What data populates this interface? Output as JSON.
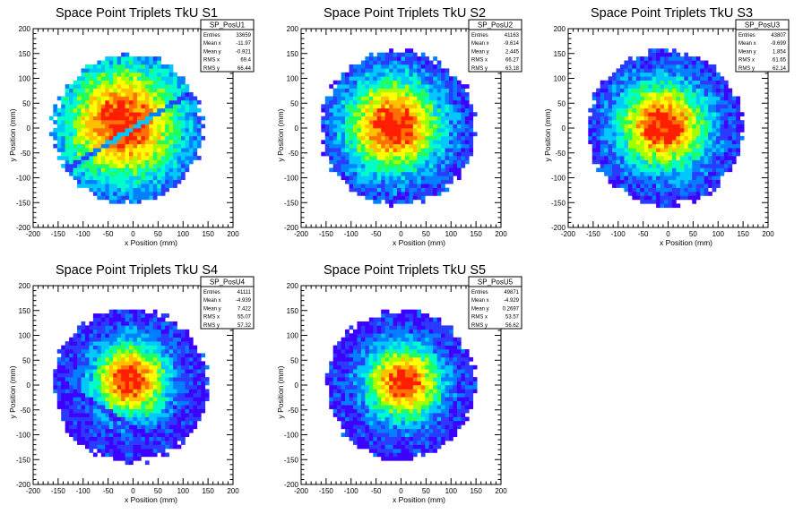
{
  "colors": {
    "palette": [
      "#3d00ff",
      "#2a3bff",
      "#0080ff",
      "#00c8ff",
      "#00ffc8",
      "#20ff60",
      "#a6ff00",
      "#ffff00",
      "#ffc000",
      "#ff7000",
      "#ff1e00"
    ]
  },
  "chart_data": [
    {
      "type": "heatmap",
      "title": "Space Point Triplets TkU S1",
      "xlabel": "x Position (mm)",
      "ylabel": "y Position (mm)",
      "xlim": [
        -200,
        200
      ],
      "ylim": [
        -200,
        200
      ],
      "xticks": [
        -200,
        -150,
        -100,
        -50,
        0,
        50,
        100,
        150,
        200
      ],
      "yticks": [
        -200,
        -150,
        -100,
        -50,
        0,
        50,
        100,
        150,
        200
      ],
      "grid": false,
      "shape": {
        "radius": 150,
        "center": [
          -10,
          0
        ],
        "core_sigma": 80,
        "peak": [
          -20,
          10
        ]
      },
      "stats": {
        "name": "SP_PosU1",
        "Entries": "33659",
        "Mean x": "-11.97",
        "Mean y": "-0.921",
        "RMS x": "69.4",
        "RMS y": "66.44"
      }
    },
    {
      "type": "heatmap",
      "title": "Space Point Triplets TkU S2",
      "xlabel": "x Position (mm)",
      "ylabel": "y Position (mm)",
      "xlim": [
        -200,
        200
      ],
      "ylim": [
        -200,
        200
      ],
      "xticks": [
        -200,
        -150,
        -100,
        -50,
        0,
        50,
        100,
        150,
        200
      ],
      "yticks": [
        -200,
        -150,
        -100,
        -50,
        0,
        50,
        100,
        150,
        200
      ],
      "grid": false,
      "shape": {
        "radius": 155,
        "center": [
          -5,
          0
        ],
        "core_sigma": 65,
        "peak": [
          -15,
          5
        ]
      },
      "stats": {
        "name": "SP_PosU2",
        "Entries": "41163",
        "Mean x": "-9.614",
        "Mean y": "2.445",
        "RMS x": "66.27",
        "RMS y": "63.18"
      }
    },
    {
      "type": "heatmap",
      "title": "Space Point Triplets TkU S3",
      "xlabel": "x Position (mm)",
      "ylabel": "y Position (mm)",
      "xlim": [
        -200,
        200
      ],
      "ylim": [
        -200,
        200
      ],
      "xticks": [
        -200,
        -150,
        -100,
        -50,
        0,
        50,
        100,
        150,
        200
      ],
      "yticks": [
        -200,
        -150,
        -100,
        -50,
        0,
        50,
        100,
        150,
        200
      ],
      "grid": false,
      "shape": {
        "radius": 155,
        "center": [
          -5,
          0
        ],
        "core_sigma": 60,
        "peak": [
          -10,
          5
        ]
      },
      "stats": {
        "name": "SP_PosU3",
        "Entries": "43807",
        "Mean x": "-9.699",
        "Mean y": "1.854",
        "RMS x": "61.65",
        "RMS y": "62.14"
      }
    },
    {
      "type": "heatmap",
      "title": "Space Point Triplets TkU S4",
      "xlabel": "x Position (mm)",
      "ylabel": "y Position (mm)",
      "xlim": [
        -200,
        200
      ],
      "ylim": [
        -200,
        200
      ],
      "xticks": [
        -200,
        -150,
        -100,
        -50,
        0,
        50,
        100,
        150,
        200
      ],
      "yticks": [
        -200,
        -150,
        -100,
        -50,
        0,
        50,
        100,
        150,
        200
      ],
      "grid": false,
      "shape": {
        "radius": 155,
        "center": [
          -5,
          0
        ],
        "core_sigma": 50,
        "peak": [
          -5,
          10
        ]
      },
      "stats": {
        "name": "SP_PosU4",
        "Entries": "41111",
        "Mean x": "-4.939",
        "Mean y": "7.422",
        "RMS x": "55.07",
        "RMS y": "57.32"
      }
    },
    {
      "type": "heatmap",
      "title": "Space Point Triplets TkU S5",
      "xlabel": "x Position (mm)",
      "ylabel": "y Position (mm)",
      "xlim": [
        -200,
        200
      ],
      "ylim": [
        -200,
        200
      ],
      "xticks": [
        -200,
        -150,
        -100,
        -50,
        0,
        50,
        100,
        150,
        200
      ],
      "yticks": [
        -200,
        -150,
        -100,
        -50,
        0,
        50,
        100,
        150,
        200
      ],
      "grid": false,
      "shape": {
        "radius": 150,
        "center": [
          0,
          0
        ],
        "core_sigma": 50,
        "peak": [
          5,
          5
        ]
      },
      "stats": {
        "name": "SP_PosU5",
        "Entries": "49871",
        "Mean x": "-4.929",
        "Mean y": "0.2697",
        "RMS x": "53.57",
        "RMS y": "56.62"
      }
    }
  ]
}
